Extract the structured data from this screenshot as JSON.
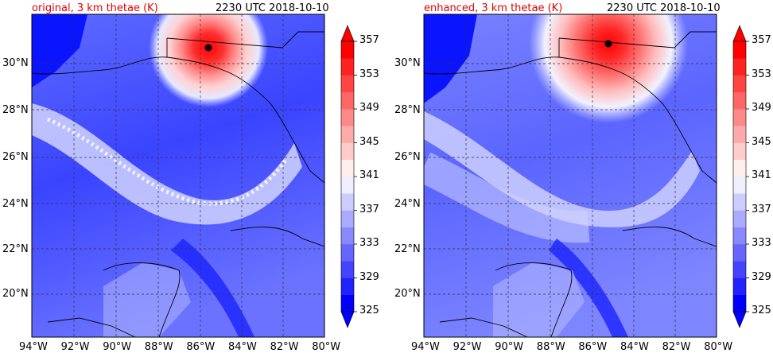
{
  "panels": [
    {
      "title_left": "original, 3 km thetae (K)",
      "title_right": "2230 UTC 2018-10-10"
    },
    {
      "title_left": "enhanced, 3 km thetae (K)",
      "title_right": "2230 UTC 2018-10-10"
    }
  ],
  "axes": {
    "lon_ticks": [
      "94°W",
      "92°W",
      "90°W",
      "88°W",
      "86°W",
      "84°W",
      "82°W",
      "80°W"
    ],
    "lat_ticks": [
      "30°N",
      "28°N",
      "26°N",
      "24°N",
      "22°N",
      "20°N"
    ]
  },
  "colorbar": {
    "ticks": [
      "357",
      "353",
      "349",
      "345",
      "341",
      "337",
      "333",
      "329",
      "325"
    ],
    "levels": [
      325,
      327,
      329,
      331,
      333,
      335,
      337,
      339,
      341,
      343,
      345,
      347,
      349,
      351,
      353,
      355,
      357
    ],
    "extend": "both"
  },
  "colors": {
    "title_accent": "#e00000",
    "low": "#0000ff",
    "mid": "#ffffff",
    "high": "#ff0000"
  },
  "map": {
    "region": "Gulf of Mexico",
    "grid": "dashed",
    "storm_center_marker": "black dot"
  }
}
